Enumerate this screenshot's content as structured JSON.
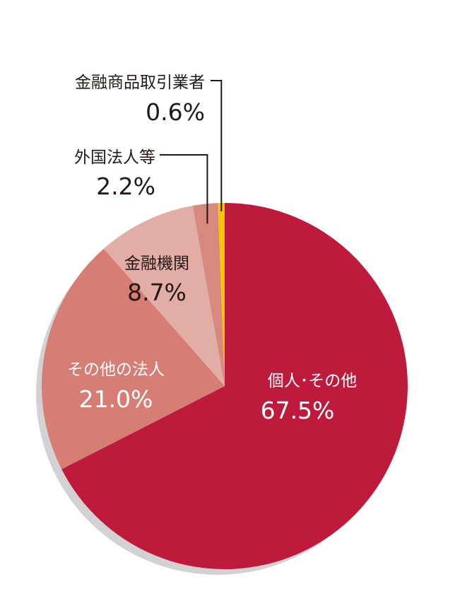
{
  "chart_data": {
    "type": "pie",
    "title": "",
    "start": "12 o'clock",
    "direction": "clockwise",
    "slices": [
      {
        "label": "個人･その他",
        "value": 67.5,
        "value_label": "67.5%",
        "color": "#BE1A3B",
        "label_color": "#FFFFFF"
      },
      {
        "label": "その他の法人",
        "value": 21.0,
        "value_label": "21.0%",
        "color": "#D67E74",
        "label_color": "#FFFFFF"
      },
      {
        "label": "金融機関",
        "value": 8.7,
        "value_label": "8.7%",
        "color": "#E2ADA4",
        "label_color": "#231815"
      },
      {
        "label": "外国法人等",
        "value": 2.2,
        "value_label": "2.2%",
        "color": "#D8897F",
        "label_color": "#231815"
      },
      {
        "label": "金融商品取引業者",
        "value": 0.6,
        "value_label": "0.6%",
        "color": "#F7C600",
        "label_color": "#231815"
      }
    ]
  }
}
